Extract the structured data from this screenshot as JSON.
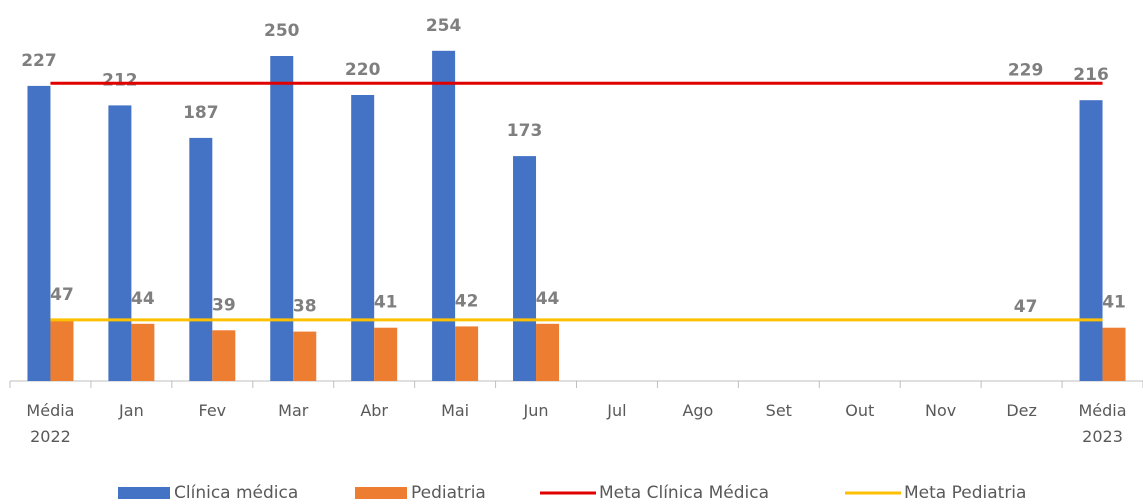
{
  "chart_data": {
    "type": "bar",
    "categories": [
      "Média 2022",
      "Jan",
      "Fev",
      "Mar",
      "Abr",
      "Mai",
      "Jun",
      "Jul",
      "Ago",
      "Set",
      "Out",
      "Nov",
      "Dez",
      "Média 2023"
    ],
    "series": [
      {
        "name": "Clínica médica",
        "color": "#4472c4",
        "values": [
          227,
          212,
          187,
          250,
          220,
          254,
          173,
          null,
          null,
          null,
          null,
          null,
          null,
          216
        ]
      },
      {
        "name": "Pediatria",
        "color": "#ed7d31",
        "values": [
          47,
          44,
          39,
          38,
          41,
          42,
          44,
          null,
          null,
          null,
          null,
          null,
          null,
          41
        ]
      },
      {
        "name": "Meta Clínica Médica",
        "color": "#e00000",
        "type": "line",
        "value": 229
      },
      {
        "name": "Meta Pediatria",
        "color": "#ffc000",
        "type": "line",
        "value": 47
      }
    ],
    "ylim": [
      0,
      280
    ]
  }
}
